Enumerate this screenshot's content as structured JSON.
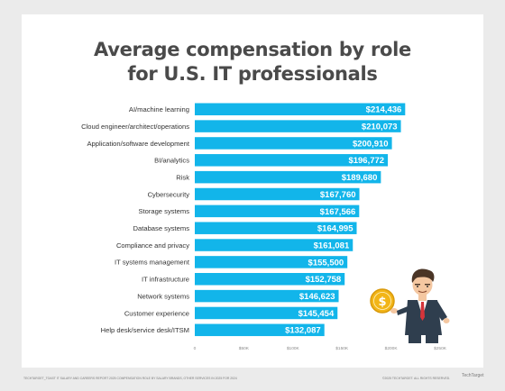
{
  "title_line1": "Average compensation by role",
  "title_line2": "for U.S. IT professionals",
  "footer_left": "TECHTARGET_TOAST IT SALARY AND CAREERS REPORT 2025 COMPENSATION ROLE BY SALARY BRANDS, OTHER SERVICES IN 2025 FOR 2024",
  "footer_right": "©2025 TECHTARGET. ALL RIGHTS RESERVED.",
  "brand": "TechTarget",
  "colors": {
    "bar": "#12b5ea",
    "background": "#ebebeb",
    "card": "#ffffff",
    "label": "#333333"
  },
  "chart_data": {
    "type": "bar",
    "orientation": "horizontal",
    "title": "Average compensation by role for U.S. IT professionals",
    "categories": [
      "AI/machine learning",
      "Cloud engineer/architect/operations",
      "Application/software development",
      "BI/analytics",
      "Risk",
      "Cybersecurity",
      "Storage systems",
      "Database systems",
      "Compliance and privacy",
      "IT systems management",
      "IT infrastructure",
      "Network systems",
      "Customer experience",
      "Help desk/service desk/ITSM"
    ],
    "values": [
      214436,
      210073,
      200910,
      196772,
      189680,
      167760,
      167566,
      164995,
      161081,
      155500,
      152758,
      146623,
      145454,
      132087
    ],
    "data_labels": [
      "$214,436",
      "$210,073",
      "$200,910",
      "$196,772",
      "$189,680",
      "$167,760",
      "$167,566",
      "$164,995",
      "$161,081",
      "$155,500",
      "$152,758",
      "$146,623",
      "$145,454",
      "$132,087"
    ],
    "x_ticks": [
      0,
      50000,
      100000,
      150000,
      200000,
      250000
    ],
    "x_tick_labels": [
      "0",
      "$50K",
      "$100K",
      "$150K",
      "$200K",
      "$250K"
    ],
    "xlim": [
      0,
      250000
    ],
    "grid": false,
    "illustration": "businessman holding gold dollar coin"
  }
}
